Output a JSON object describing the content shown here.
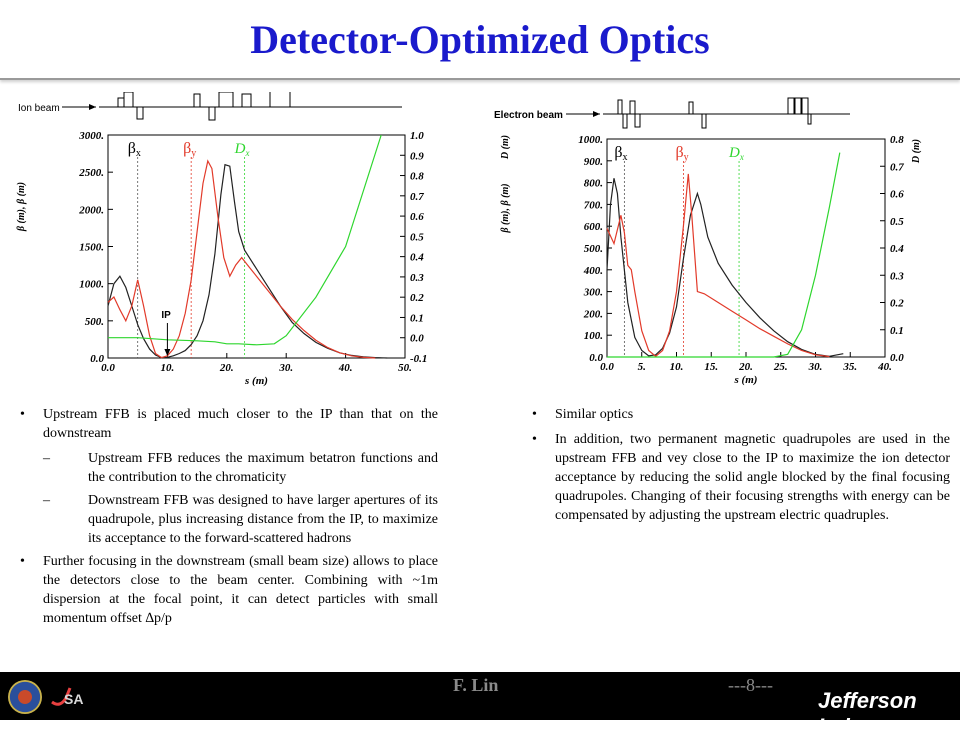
{
  "title": "Detector-Optimized Optics",
  "chart_data": [
    {
      "type": "line",
      "beamline_label": "Ion beam",
      "left_axis_label": "β (m), β (m)",
      "right_axis_label": "",
      "xlabel": "s (m)",
      "xlim": [
        0,
        50
      ],
      "ylim_left": [
        0,
        3000
      ],
      "ylim_right": [
        -0.1,
        1.0
      ],
      "x_ticks": [
        "0.0",
        "10.",
        "20.",
        "30.",
        "40.",
        "50."
      ],
      "y_ticks_left": [
        "0.0",
        "500.",
        "1000.",
        "1500.",
        "2000.",
        "2500.",
        "3000."
      ],
      "y_ticks_right": [
        "-0.1",
        "0.0",
        "0.1",
        "0.2",
        "0.3",
        "0.4",
        "0.5",
        "0.6",
        "0.7",
        "0.8",
        "0.9",
        "1.0"
      ],
      "legend": [
        "βx",
        "βy",
        "Dx"
      ],
      "annotation": "IP",
      "ip_s": 10,
      "grid": false,
      "series": [
        {
          "name": "βx",
          "axis": "left",
          "color": "#222222",
          "x": [
            0,
            1,
            2,
            3,
            4,
            5,
            6,
            7,
            8,
            9,
            10,
            11,
            12,
            13,
            14,
            15,
            16,
            17,
            18,
            19,
            19.7,
            20.5,
            21.3,
            22,
            23,
            25,
            27,
            29,
            31,
            33,
            35,
            37,
            39,
            41,
            43,
            45,
            47
          ],
          "y": [
            700,
            1000,
            1100,
            950,
            700,
            450,
            260,
            120,
            40,
            5,
            10,
            30,
            60,
            100,
            180,
            300,
            500,
            850,
            1400,
            2200,
            2600,
            2580,
            2100,
            1700,
            1450,
            1200,
            950,
            700,
            480,
            330,
            210,
            130,
            70,
            35,
            15,
            5,
            0
          ]
        },
        {
          "name": "βy",
          "axis": "left",
          "color": "#e23a2a",
          "x": [
            0,
            1,
            2,
            3,
            4,
            5,
            6,
            7,
            8,
            9,
            10,
            11,
            12,
            13,
            14,
            15,
            16,
            16.8,
            17.5,
            18.5,
            19.5,
            20.5,
            21.5,
            22.5,
            23.5,
            25,
            27,
            29,
            31,
            33,
            35,
            37,
            39,
            41,
            43,
            45
          ],
          "y": [
            750,
            820,
            650,
            500,
            700,
            1050,
            700,
            300,
            60,
            5,
            30,
            120,
            300,
            600,
            1050,
            1700,
            2350,
            2650,
            2550,
            1900,
            1350,
            1100,
            1250,
            1350,
            1250,
            1100,
            900,
            700,
            520,
            370,
            240,
            140,
            70,
            30,
            8,
            0
          ]
        },
        {
          "name": "Dx",
          "axis": "right",
          "color": "#2ed62e",
          "x": [
            0,
            5,
            10,
            15,
            18,
            20,
            22,
            25,
            28,
            30,
            35,
            40,
            46
          ],
          "y": [
            0.0,
            0.0,
            -0.01,
            -0.015,
            -0.02,
            -0.03,
            -0.03,
            -0.035,
            -0.03,
            0.01,
            0.2,
            0.45,
            1.0
          ]
        }
      ]
    },
    {
      "type": "line",
      "beamline_label": "Electron beam",
      "left_axis_label": "β (m), β (m)",
      "right_axis_label": "D (m)",
      "left_unit_label": "D (m)",
      "xlabel": "s (m)",
      "xlim": [
        0,
        40
      ],
      "ylim_left": [
        0,
        1000
      ],
      "ylim_right": [
        0,
        0.8
      ],
      "x_ticks": [
        "0.0",
        "5.",
        "10.",
        "15.",
        "20.",
        "25.",
        "30.",
        "35.",
        "40."
      ],
      "y_ticks_left": [
        "0.0",
        "100.",
        "200.",
        "300.",
        "400.",
        "500.",
        "600.",
        "700.",
        "800.",
        "900.",
        "1000."
      ],
      "y_ticks_right": [
        "0.0",
        "0.1",
        "0.2",
        "0.3",
        "0.4",
        "0.5",
        "0.6",
        "0.7",
        "0.8"
      ],
      "legend": [
        "βx",
        "βy",
        "Dx"
      ],
      "grid": false,
      "series": [
        {
          "name": "βx",
          "axis": "left",
          "color": "#222222",
          "x": [
            0,
            0.5,
            1,
            1.5,
            2,
            3,
            4,
            5,
            6,
            7,
            8,
            9,
            10,
            11,
            12,
            13,
            13.5,
            14.5,
            16,
            18,
            20,
            22,
            24,
            26,
            28,
            30,
            32,
            34
          ],
          "y": [
            400,
            700,
            820,
            750,
            550,
            250,
            90,
            30,
            5,
            10,
            40,
            110,
            230,
            450,
            650,
            750,
            700,
            550,
            430,
            330,
            250,
            180,
            120,
            70,
            35,
            12,
            3,
            15
          ]
        },
        {
          "name": "βy",
          "axis": "left",
          "color": "#e23a2a",
          "x": [
            0,
            1,
            2,
            2.5,
            3,
            3.5,
            4,
            5,
            6,
            7,
            8,
            9,
            10,
            11,
            11.7,
            12.2,
            13,
            14,
            16,
            18,
            20,
            22,
            24,
            26,
            28,
            30,
            32
          ],
          "y": [
            590,
            520,
            650,
            570,
            420,
            400,
            300,
            120,
            30,
            3,
            30,
            120,
            300,
            600,
            840,
            650,
            300,
            290,
            250,
            210,
            170,
            130,
            95,
            60,
            30,
            10,
            2
          ]
        },
        {
          "name": "Dx",
          "axis": "right",
          "color": "#2ed62e",
          "x": [
            0,
            5,
            10,
            15,
            20,
            24,
            26,
            28,
            30,
            32,
            33.5
          ],
          "y": [
            0,
            0,
            0,
            0,
            0,
            0,
            0.01,
            0.1,
            0.3,
            0.55,
            0.75
          ]
        }
      ]
    }
  ],
  "left_bullets": [
    {
      "level": 1,
      "text": "Upstream FFB is placed much closer to the IP than that on the downstream"
    },
    {
      "level": 2,
      "text": "Upstream FFB reduces the maximum betatron functions and the contribution to the chromaticity"
    },
    {
      "level": 2,
      "text": "Downstream FFB was designed to have larger apertures of its quadrupole, plus increasing distance from the IP, to maximize its acceptance to the forward-scattered hadrons"
    },
    {
      "level": 1,
      "text": "Further focusing in the downstream (small beam size) allows to place the detectors close to the beam center. Combining with ~1m dispersion at the focal point, it can detect particles with small momentum offset ∆p/p"
    }
  ],
  "right_bullets": [
    {
      "level": 1,
      "text": "Similar optics"
    },
    {
      "level": 1,
      "text": "In addition, two permanent magnetic quadrupoles are used in the upstream FFB and vey close to the IP to maximize the ion detector acceptance by reducing the solid angle blocked by the final focusing quadrupoles. Changing of their focusing strengths with energy can be compensated by adjusting the upstream electric quadruples."
    }
  ],
  "footer": {
    "author": "F. Lin",
    "page": "---8---",
    "logos": [
      "seal-logo",
      "JSA",
      "Jefferson Lab"
    ]
  }
}
